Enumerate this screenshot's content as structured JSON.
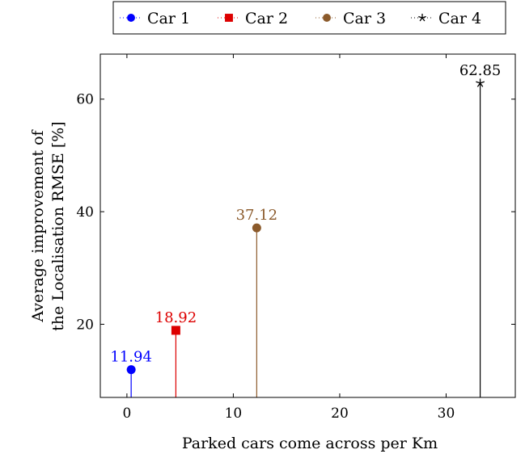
{
  "chart_data": {
    "type": "scatter",
    "style": "stem",
    "xlabel": "Parked cars come across per Km",
    "ylabel_lines": [
      "Average improvement of",
      "the Localisation RMSE [%]"
    ],
    "xlim": [
      -2.5,
      36.5
    ],
    "ylim": [
      7,
      68
    ],
    "xticks": [
      0,
      10,
      20,
      30
    ],
    "yticks": [
      20,
      40,
      60
    ],
    "grid": false,
    "legend": "top-center",
    "series": [
      {
        "name": "Car 1",
        "x": 0.4,
        "y": 11.94,
        "label": "11.94",
        "color": "#0000ff",
        "marker": "circle"
      },
      {
        "name": "Car 2",
        "x": 4.6,
        "y": 18.92,
        "label": "18.92",
        "color": "#dd0000",
        "marker": "square"
      },
      {
        "name": "Car 3",
        "x": 12.2,
        "y": 37.12,
        "label": "37.12",
        "color": "#8b5a2b",
        "marker": "circle"
      },
      {
        "name": "Car 4",
        "x": 33.2,
        "y": 62.85,
        "label": "62.85",
        "color": "#000000",
        "marker": "star"
      }
    ]
  }
}
